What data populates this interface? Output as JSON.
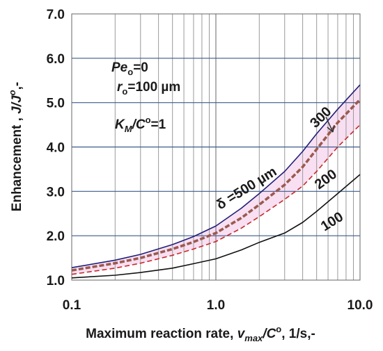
{
  "chart_data": {
    "type": "line",
    "x_scale": "log",
    "xlim": [
      0.1,
      10.0
    ],
    "ylim": [
      1.0,
      7.0
    ],
    "grid": true,
    "x_ticks": [
      {
        "value": 0.1,
        "label": "0.1"
      },
      {
        "value": 1.0,
        "label": "1.0"
      },
      {
        "value": 10.0,
        "label": "10.0"
      }
    ],
    "y_ticks": [
      {
        "value": 1.0,
        "label": "1.0"
      },
      {
        "value": 2.0,
        "label": "2.0"
      },
      {
        "value": 3.0,
        "label": "3.0"
      },
      {
        "value": 4.0,
        "label": "4.0"
      },
      {
        "value": 5.0,
        "label": "5.0"
      },
      {
        "value": 6.0,
        "label": "6.0"
      },
      {
        "value": 7.0,
        "label": "7.0"
      }
    ],
    "xlabel": {
      "prefix": "Maximum reaction  rate, ",
      "var": "v",
      "sub": "max",
      "mid": "/C",
      "sup": "o",
      "suffix": ", 1/s,-"
    },
    "ylabel": {
      "prefix": "Enhancement , ",
      "var": "J/J",
      "sup": "o",
      "suffix": ",-"
    },
    "annotations": {
      "pe": {
        "main": "Pe",
        "sub": "o",
        "rest": "=0"
      },
      "r": {
        "main": "r",
        "sub": "o",
        "rest": "=100 µm"
      },
      "km": {
        "main": "K",
        "sub": "M",
        "mid": "/C",
        "sup": "o",
        "rest": "=1"
      }
    },
    "curve_labels": [
      {
        "text": "δ =500 µm"
      },
      {
        "text": "300"
      },
      {
        "text": "200"
      },
      {
        "text": "100"
      }
    ],
    "series": [
      {
        "label_ref": "δ =500 µm",
        "color": "#1f1f7a",
        "style": "solid",
        "x": [
          0.1,
          0.2,
          0.3,
          0.5,
          0.7,
          1.0,
          1.5,
          2.0,
          3.0,
          4.0,
          5.0,
          7.0,
          10.0
        ],
        "y": [
          1.28,
          1.45,
          1.58,
          1.8,
          1.98,
          2.22,
          2.62,
          2.95,
          3.45,
          3.9,
          4.3,
          4.85,
          5.4
        ]
      },
      {
        "label_ref": "300",
        "color": "#9b5a4e",
        "style": "thick-dashed",
        "x": [
          0.1,
          0.2,
          0.3,
          0.5,
          0.7,
          1.0,
          1.5,
          2.0,
          3.0,
          4.0,
          5.0,
          7.0,
          10.0
        ],
        "y": [
          1.22,
          1.38,
          1.5,
          1.7,
          1.86,
          2.06,
          2.4,
          2.7,
          3.15,
          3.55,
          3.95,
          4.55,
          5.07
        ]
      },
      {
        "label_ref": "200",
        "color": "#c62828",
        "style": "dashed",
        "x": [
          0.1,
          0.2,
          0.3,
          0.5,
          0.7,
          1.0,
          1.5,
          2.0,
          3.0,
          4.0,
          5.0,
          7.0,
          10.0
        ],
        "y": [
          1.13,
          1.27,
          1.38,
          1.56,
          1.7,
          1.87,
          2.17,
          2.43,
          2.82,
          3.12,
          3.45,
          4.0,
          4.5
        ]
      },
      {
        "label_ref": "100",
        "color": "#111111",
        "style": "solid",
        "x": [
          0.1,
          0.2,
          0.3,
          0.5,
          0.7,
          1.0,
          1.5,
          2.0,
          3.0,
          4.0,
          5.0,
          7.0,
          10.0
        ],
        "y": [
          1.05,
          1.11,
          1.17,
          1.27,
          1.37,
          1.48,
          1.68,
          1.85,
          2.06,
          2.3,
          2.55,
          2.95,
          3.38
        ]
      }
    ]
  }
}
